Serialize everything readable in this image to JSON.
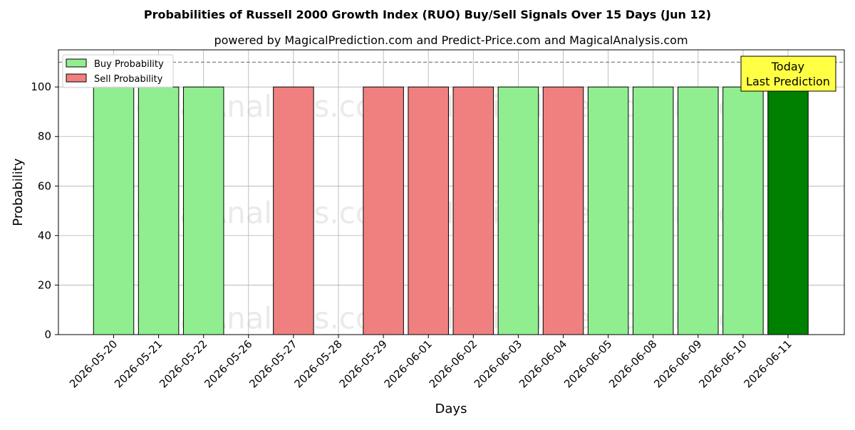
{
  "chart_data": {
    "type": "bar",
    "title": "Probabilities of Russell 2000 Growth Index (RUO) Buy/Sell Signals Over 15 Days (Jun 12)",
    "subtitle": "powered by MagicalPrediction.com and Predict-Price.com and MagicalAnalysis.com",
    "xlabel": "Days",
    "ylabel": "Probability",
    "ylim": [
      0,
      115
    ],
    "yticks": [
      0,
      20,
      40,
      60,
      80,
      100
    ],
    "grid": true,
    "legend_position": "top-left",
    "reference_line": 110,
    "categories": [
      "2026-05-20",
      "2026-05-21",
      "2026-05-22",
      "2026-05-26",
      "2026-05-27",
      "2026-05-28",
      "2026-05-29",
      "2026-06-01",
      "2026-06-02",
      "2026-06-03",
      "2026-06-04",
      "2026-06-05",
      "2026-06-08",
      "2026-06-09",
      "2026-06-10",
      "2026-06-11"
    ],
    "series": [
      {
        "name": "Buy Probability",
        "color": "#90ee90",
        "values": [
          100,
          100,
          100,
          null,
          null,
          null,
          null,
          null,
          null,
          100,
          null,
          100,
          100,
          100,
          100,
          100
        ]
      },
      {
        "name": "Sell Probability",
        "color": "#f08080",
        "values": [
          null,
          null,
          null,
          null,
          100,
          null,
          100,
          100,
          100,
          null,
          100,
          null,
          null,
          null,
          null,
          null
        ]
      }
    ],
    "highlight": {
      "category": "2026-06-11",
      "color": "#008000"
    },
    "annotation": {
      "line1": "Today",
      "line2": "Last Prediction",
      "background": "#ffff44"
    },
    "watermarks": [
      "MagicalAnalysis.com",
      "MagicalPrediction.com"
    ]
  }
}
